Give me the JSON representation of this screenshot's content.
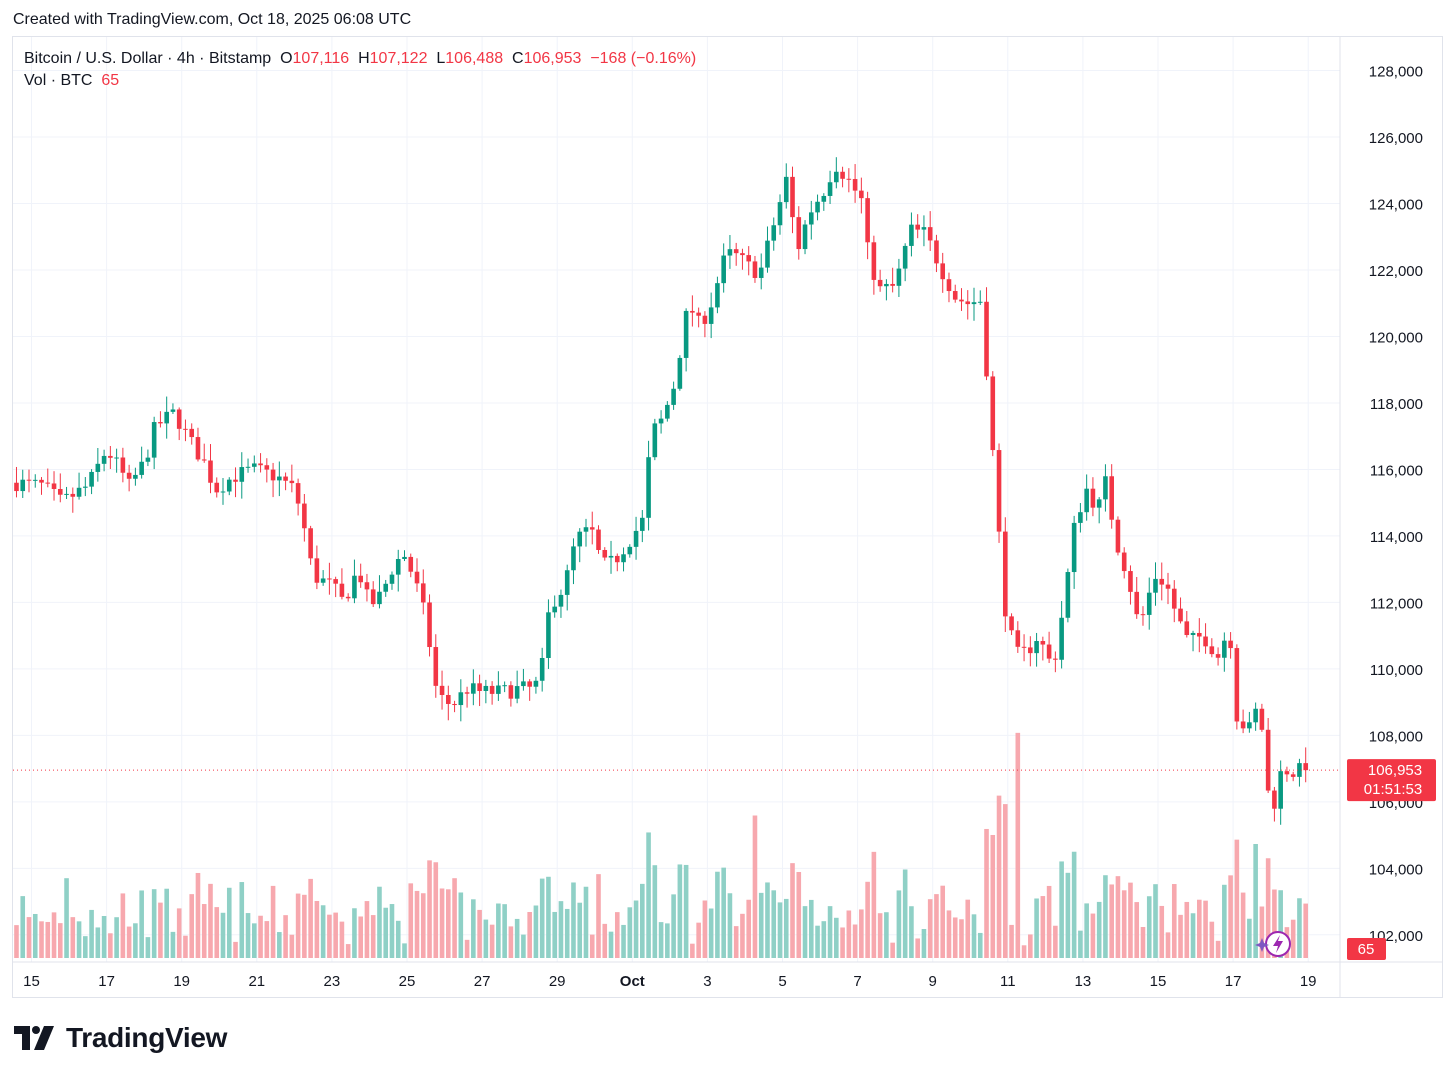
{
  "header": {
    "created_text": "Created with TradingView.com, Oct 18, 2025 06:08 UTC"
  },
  "legend": {
    "symbol": "Bitcoin / U.S. Dollar · 4h · Bitstamp",
    "o_label": "O",
    "o_value": "107,116",
    "h_label": "H",
    "h_value": "107,122",
    "l_label": "L",
    "l_value": "106,488",
    "c_label": "C",
    "c_value": "106,953",
    "change": "−168 (−0.16%)",
    "vol_label": "Vol · BTC",
    "vol_value": "65"
  },
  "last_price": {
    "label": "106,953",
    "countdown": "01:51:53",
    "value": 106953
  },
  "volume_badge": "65",
  "logo": {
    "text": "TradingView",
    "icon": "tradingview-logo-icon"
  },
  "colors": {
    "up": "#089981",
    "down": "#f23645",
    "up_vol": "#8fd0c6",
    "down_vol": "#f7a8ae",
    "grid": "#f0f3fa"
  },
  "chart_data": {
    "type": "candlestick",
    "timeframe": "4h",
    "title": "Bitcoin / U.S. Dollar · 4h · Bitstamp",
    "ylim": [
      101300,
      128800
    ],
    "y_ticks": [
      {
        "value": 102000,
        "label": "102,000"
      },
      {
        "value": 104000,
        "label": "104,000"
      },
      {
        "value": 106000,
        "label": "106,000"
      },
      {
        "value": 108000,
        "label": "108,000"
      },
      {
        "value": 110000,
        "label": "110,000"
      },
      {
        "value": 112000,
        "label": "112,000"
      },
      {
        "value": 114000,
        "label": "114,000"
      },
      {
        "value": 116000,
        "label": "116,000"
      },
      {
        "value": 118000,
        "label": "118,000"
      },
      {
        "value": 120000,
        "label": "120,000"
      },
      {
        "value": 122000,
        "label": "122,000"
      },
      {
        "value": 124000,
        "label": "124,000"
      },
      {
        "value": 126000,
        "label": "126,000"
      },
      {
        "value": 128000,
        "label": "128,000"
      }
    ],
    "x_ticks": [
      {
        "day": 0,
        "label": "15"
      },
      {
        "day": 2,
        "label": "17"
      },
      {
        "day": 4,
        "label": "19"
      },
      {
        "day": 6,
        "label": "21"
      },
      {
        "day": 8,
        "label": "23"
      },
      {
        "day": 10,
        "label": "25"
      },
      {
        "day": 12,
        "label": "27"
      },
      {
        "day": 14,
        "label": "29"
      },
      {
        "day": 16,
        "label": "Oct",
        "bold": true
      },
      {
        "day": 18,
        "label": "3"
      },
      {
        "day": 20,
        "label": "5"
      },
      {
        "day": 22,
        "label": "7"
      },
      {
        "day": 24,
        "label": "9"
      },
      {
        "day": 26,
        "label": "11"
      },
      {
        "day": 28,
        "label": "13"
      },
      {
        "day": 30,
        "label": "15"
      },
      {
        "day": 32,
        "label": "17"
      },
      {
        "day": 34,
        "label": "19"
      }
    ],
    "start_day": -0.4,
    "candles_per_day": 6,
    "close_path": [
      [
        -0.4,
        115600
      ],
      [
        0.3,
        115500
      ],
      [
        0.8,
        115000
      ],
      [
        1.5,
        115500
      ],
      [
        2.0,
        116600
      ],
      [
        2.3,
        116100
      ],
      [
        2.6,
        115500
      ],
      [
        3.0,
        116200
      ],
      [
        3.3,
        117300
      ],
      [
        3.8,
        117700
      ],
      [
        4.2,
        116900
      ],
      [
        4.6,
        116200
      ],
      [
        4.9,
        115400
      ],
      [
        5.4,
        115800
      ],
      [
        5.9,
        116000
      ],
      [
        6.5,
        115800
      ],
      [
        7.0,
        115400
      ],
      [
        7.2,
        114600
      ],
      [
        7.5,
        112800
      ],
      [
        8.0,
        112500
      ],
      [
        8.3,
        112000
      ],
      [
        8.7,
        113000
      ],
      [
        9.0,
        111900
      ],
      [
        9.3,
        112200
      ],
      [
        9.6,
        113000
      ],
      [
        9.9,
        113500
      ],
      [
        10.2,
        112700
      ],
      [
        10.5,
        111500
      ],
      [
        10.8,
        109200
      ],
      [
        11.2,
        108900
      ],
      [
        11.6,
        109400
      ],
      [
        12.0,
        109300
      ],
      [
        12.5,
        109300
      ],
      [
        13.0,
        109400
      ],
      [
        13.4,
        109400
      ],
      [
        13.6,
        110100
      ],
      [
        13.8,
        111900
      ],
      [
        14.2,
        112500
      ],
      [
        14.5,
        113900
      ],
      [
        14.9,
        114200
      ],
      [
        15.2,
        113100
      ],
      [
        15.5,
        113200
      ],
      [
        16.0,
        114000
      ],
      [
        16.3,
        114500
      ],
      [
        16.5,
        117100
      ],
      [
        16.8,
        117500
      ],
      [
        17.1,
        118500
      ],
      [
        17.5,
        121000
      ],
      [
        17.8,
        120300
      ],
      [
        18.1,
        121000
      ],
      [
        18.5,
        122500
      ],
      [
        18.8,
        122400
      ],
      [
        19.1,
        122100
      ],
      [
        19.4,
        121900
      ],
      [
        19.8,
        123500
      ],
      [
        20.1,
        124700
      ],
      [
        20.4,
        122600
      ],
      [
        20.7,
        123700
      ],
      [
        21.1,
        124400
      ],
      [
        21.4,
        125200
      ],
      [
        21.7,
        124800
      ],
      [
        22.1,
        124100
      ],
      [
        22.3,
        122300
      ],
      [
        22.6,
        121400
      ],
      [
        23.0,
        121500
      ],
      [
        23.4,
        123200
      ],
      [
        23.8,
        123100
      ],
      [
        24.2,
        122100
      ],
      [
        24.6,
        121200
      ],
      [
        24.9,
        121000
      ],
      [
        25.3,
        121100
      ],
      [
        25.5,
        118000
      ],
      [
        25.7,
        115000
      ],
      [
        25.9,
        112000
      ],
      [
        26.2,
        110400
      ],
      [
        26.5,
        110500
      ],
      [
        26.8,
        111000
      ],
      [
        27.2,
        110000
      ],
      [
        27.5,
        112000
      ],
      [
        27.8,
        114500
      ],
      [
        28.1,
        115400
      ],
      [
        28.4,
        114800
      ],
      [
        28.6,
        115600
      ],
      [
        28.9,
        113800
      ],
      [
        29.2,
        112800
      ],
      [
        29.5,
        111200
      ],
      [
        29.9,
        112800
      ],
      [
        30.2,
        112600
      ],
      [
        30.5,
        111600
      ],
      [
        30.8,
        110800
      ],
      [
        31.2,
        111000
      ],
      [
        31.6,
        110400
      ],
      [
        31.9,
        111300
      ],
      [
        32.1,
        108600
      ],
      [
        32.4,
        108100
      ],
      [
        32.7,
        109000
      ],
      [
        33.0,
        105500
      ],
      [
        33.3,
        107000
      ],
      [
        33.6,
        106900
      ],
      [
        33.9,
        106953
      ]
    ],
    "volume_spikes": [
      {
        "day": 26.2,
        "value": 7.9
      },
      {
        "day": 25.9,
        "value": 5.4
      },
      {
        "day": 19.2,
        "value": 5.0
      },
      {
        "day": 32.6,
        "value": 4.0
      },
      {
        "day": 32.9,
        "value": 3.5
      },
      {
        "day": 32.0,
        "value": 2.9
      },
      {
        "day": 11.3,
        "value": 2.8
      },
      {
        "day": 14.7,
        "value": 2.5
      },
      {
        "day": 1.0,
        "value": 2.8
      }
    ]
  }
}
